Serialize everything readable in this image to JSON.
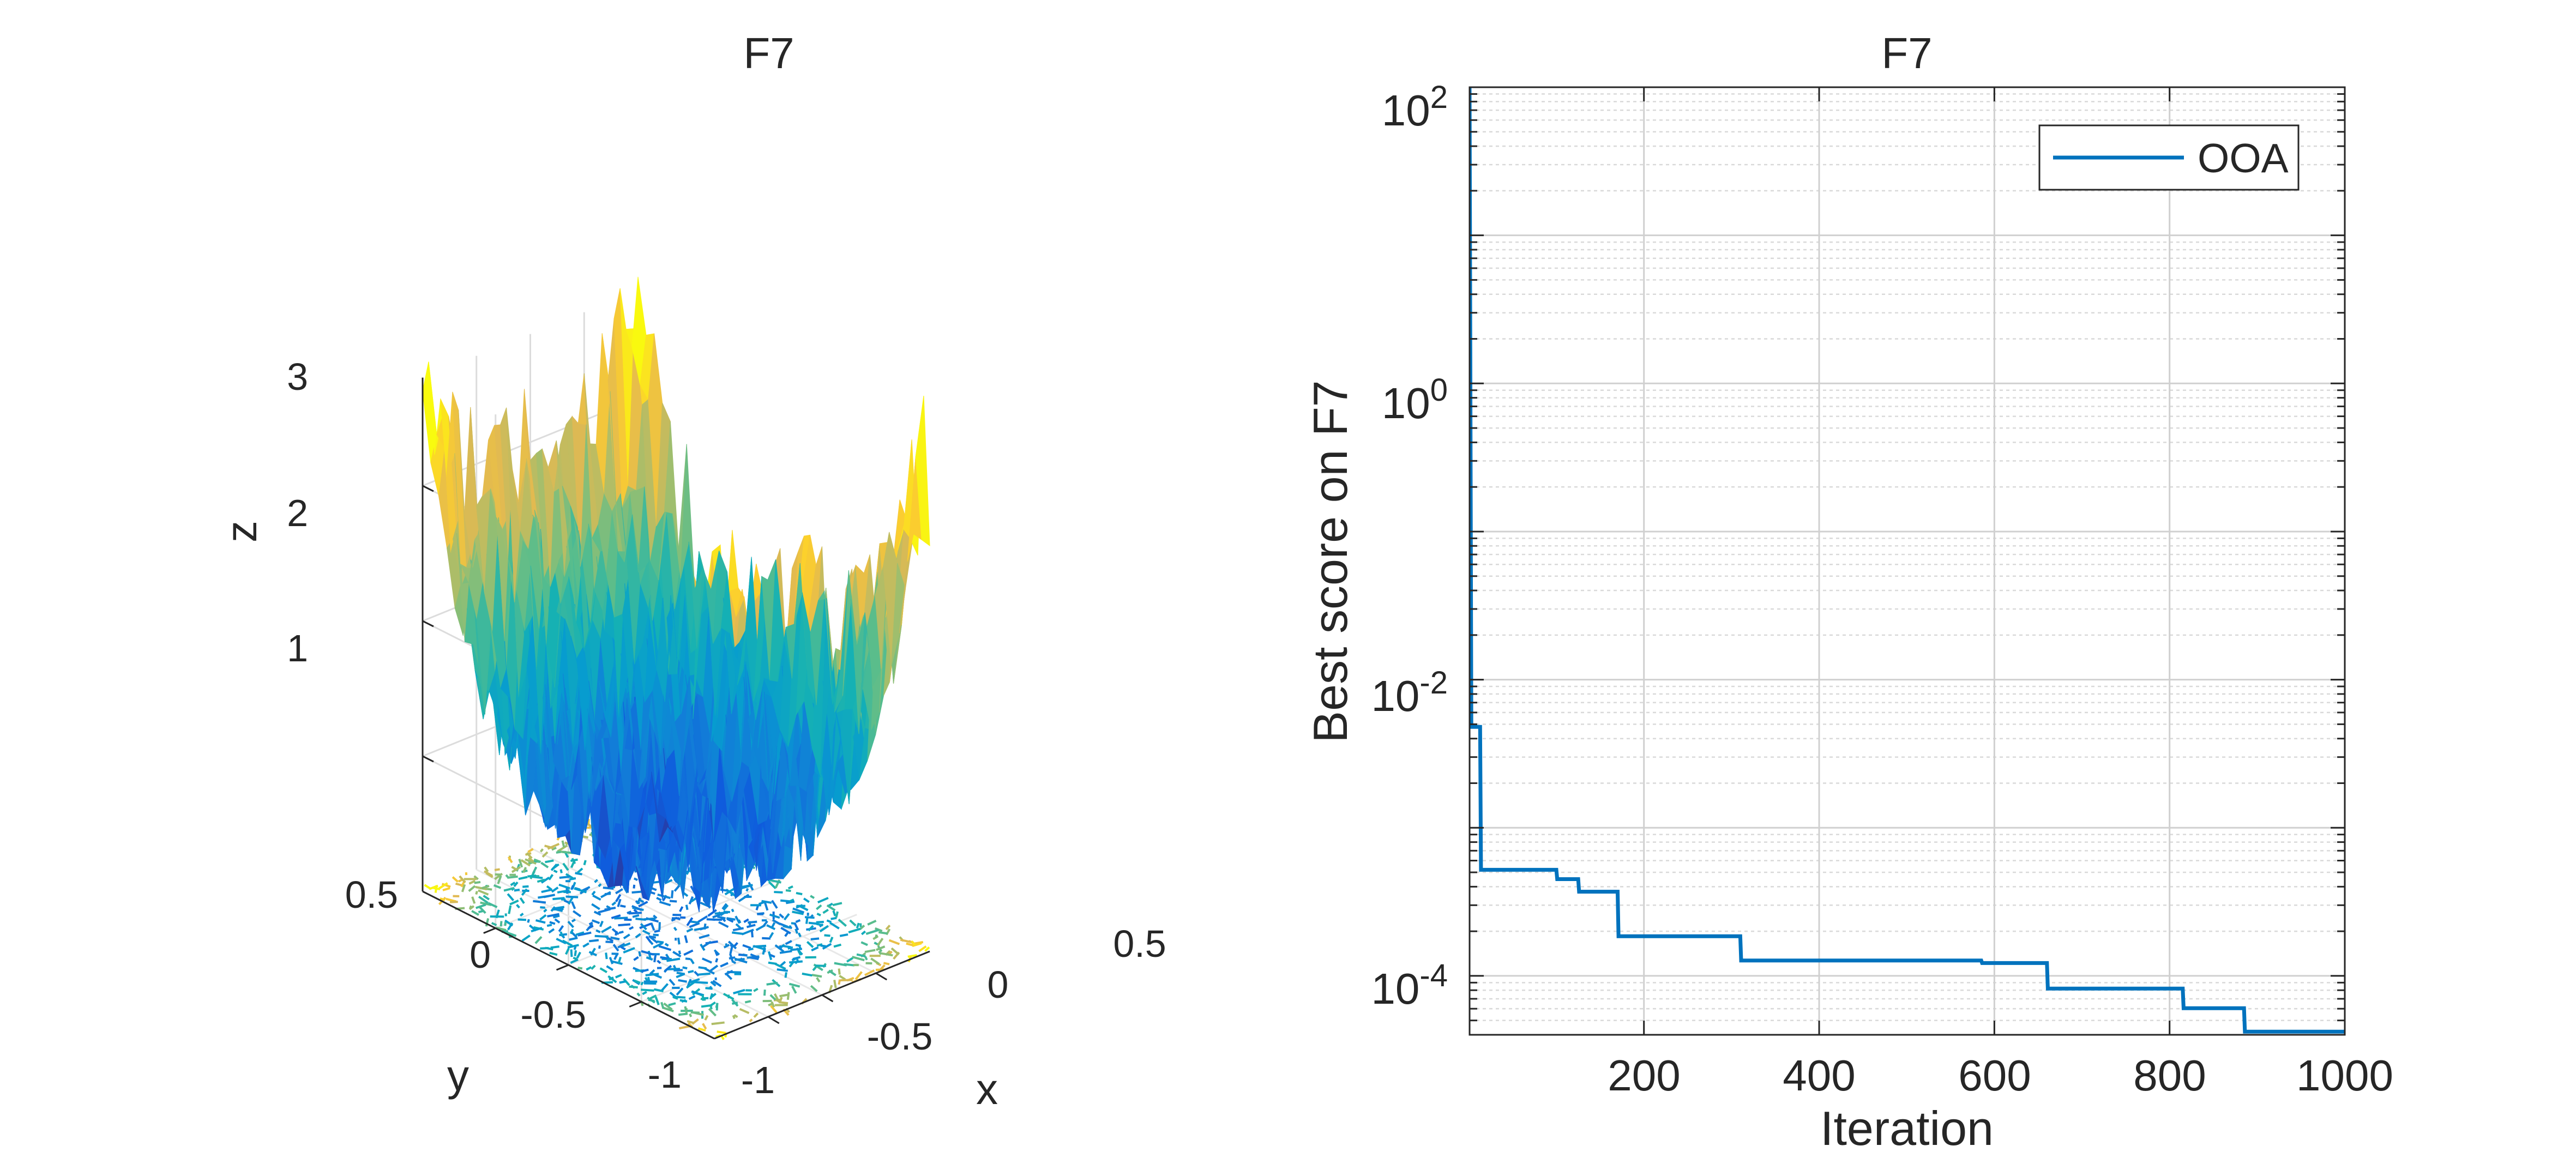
{
  "chart_data": [
    {
      "type": "surface3d",
      "title": "F7",
      "xlabel": "x",
      "ylabel": "y",
      "zlabel": "z",
      "x_ticks": [
        "-1",
        "-0.5",
        "0",
        "0.5"
      ],
      "y_ticks": [
        "-1",
        "-0.5",
        "0",
        "0.5"
      ],
      "z_ticks": [
        "1",
        "2",
        "3"
      ],
      "xlim": [
        -1,
        1
      ],
      "ylim": [
        -1,
        1
      ],
      "zlim": [
        0,
        3.8
      ],
      "function": "sum(i * x_i^4) + random noise (F7 quartic with noise)",
      "colormap": "parula",
      "contour_base": true
    },
    {
      "type": "line",
      "title": "F7",
      "xlabel": "Iteration",
      "ylabel": "Best score on F7",
      "yscale": "log",
      "xlim": [
        1,
        1000
      ],
      "ylim": [
        4e-05,
        100
      ],
      "x_ticks": [
        "200",
        "400",
        "600",
        "800",
        "1000"
      ],
      "y_ticks": [
        {
          "base": "10",
          "exp": "2",
          "value": 100
        },
        {
          "base": "10",
          "exp": "0",
          "value": 1
        },
        {
          "base": "10",
          "exp": "-2",
          "value": 0.01
        },
        {
          "base": "10",
          "exp": "-4",
          "value": 0.0001
        }
      ],
      "grid": true,
      "legend_position": "top-right",
      "series": [
        {
          "name": "OOA",
          "color": "#0072BD",
          "step": true,
          "points": [
            [
              1,
              100
            ],
            [
              3,
              0.0048
            ],
            [
              13,
              0.0048
            ],
            [
              14,
              0.00052
            ],
            [
              100,
              0.00052
            ],
            [
              101,
              0.00045
            ],
            [
              125,
              0.00045
            ],
            [
              126,
              0.00037
            ],
            [
              170,
              0.00037
            ],
            [
              171,
              0.000185
            ],
            [
              310,
              0.000185
            ],
            [
              311,
              0.000127
            ],
            [
              585,
              0.000127
            ],
            [
              586,
              0.000122
            ],
            [
              660,
              0.000122
            ],
            [
              661,
              8.2e-05
            ],
            [
              815,
              8.2e-05
            ],
            [
              816,
              6.05e-05
            ],
            [
              885,
              6.05e-05
            ],
            [
              886,
              4.2e-05
            ],
            [
              1000,
              4.2e-05
            ]
          ]
        }
      ]
    }
  ]
}
